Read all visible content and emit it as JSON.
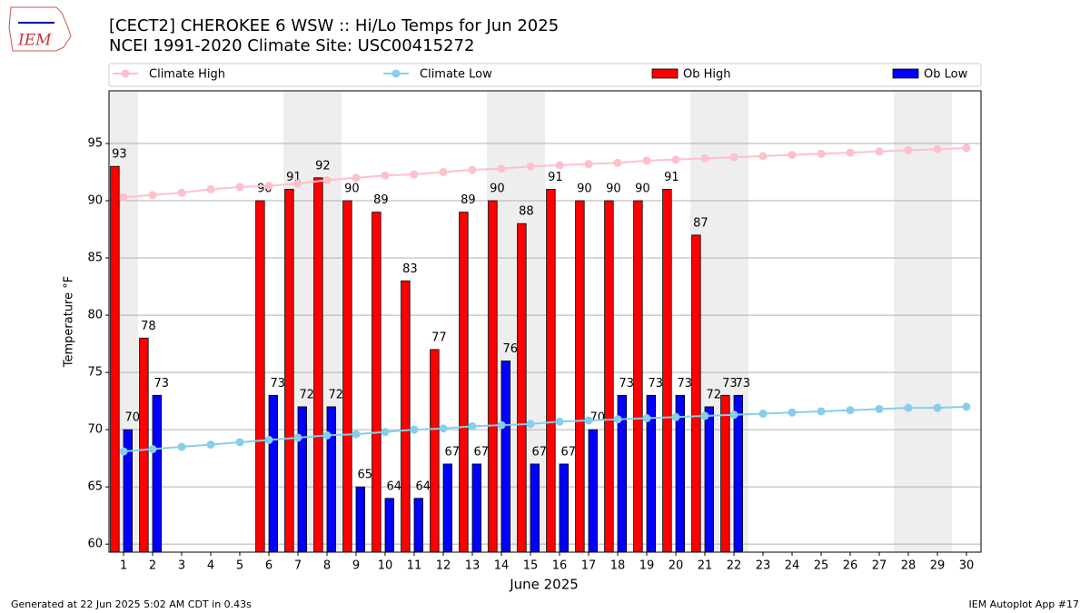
{
  "logo_text": "IEM",
  "chart_data": {
    "type": "bar",
    "title": "[CECT2] CHEROKEE 6 WSW :: Hi/Lo Temps for Jun 2025",
    "subtitle": "NCEI 1991-2020 Climate Site: USC00415272",
    "ylabel": "Temperature $^\\circ$F",
    "y_label_text": "Temperature °F",
    "xlabel": "June 2025",
    "x": [
      1,
      2,
      3,
      4,
      5,
      6,
      7,
      8,
      9,
      10,
      11,
      12,
      13,
      14,
      15,
      16,
      17,
      18,
      19,
      20,
      21,
      22,
      23,
      24,
      25,
      26,
      27,
      28,
      29,
      30
    ],
    "xlim": [
      0.5,
      30.5
    ],
    "xticks": [
      1,
      2,
      3,
      4,
      5,
      6,
      7,
      8,
      9,
      10,
      11,
      12,
      13,
      14,
      15,
      16,
      17,
      18,
      19,
      20,
      21,
      22,
      23,
      24,
      25,
      26,
      27,
      28,
      29,
      30
    ],
    "ylim": [
      59.3,
      99.6
    ],
    "yticks": [
      60,
      65,
      70,
      75,
      80,
      85,
      90,
      95
    ],
    "grid": true,
    "shaded_days": [
      1,
      7,
      8,
      14,
      15,
      21,
      22,
      28,
      29
    ],
    "series": [
      {
        "name": "Climate High",
        "kind": "line",
        "color": "#ffc0cb",
        "values": [
          90.3,
          90.5,
          90.7,
          91.0,
          91.2,
          91.3,
          91.5,
          91.8,
          92.0,
          92.2,
          92.3,
          92.5,
          92.7,
          92.8,
          93.0,
          93.1,
          93.2,
          93.3,
          93.5,
          93.6,
          93.7,
          93.8,
          93.9,
          94.0,
          94.1,
          94.2,
          94.3,
          94.4,
          94.5,
          94.6
        ]
      },
      {
        "name": "Climate Low",
        "kind": "line",
        "color": "#87ceeb",
        "values": [
          68.1,
          68.3,
          68.5,
          68.7,
          68.9,
          69.1,
          69.3,
          69.5,
          69.6,
          69.8,
          70.0,
          70.1,
          70.3,
          70.4,
          70.5,
          70.7,
          70.8,
          70.9,
          71.0,
          71.1,
          71.2,
          71.3,
          71.4,
          71.5,
          71.6,
          71.7,
          71.8,
          71.9,
          71.9,
          72.0
        ]
      },
      {
        "name": "Ob High",
        "kind": "bar",
        "color": "#ff0000",
        "values": [
          93,
          78,
          null,
          null,
          null,
          90,
          91,
          92,
          90,
          89,
          83,
          77,
          89,
          90,
          88,
          91,
          90,
          90,
          90,
          91,
          87,
          73,
          null,
          null,
          null,
          null,
          null,
          null,
          null,
          null
        ]
      },
      {
        "name": "Ob Low",
        "kind": "bar",
        "color": "#0000ff",
        "values": [
          70,
          73,
          null,
          null,
          null,
          73,
          72,
          72,
          65,
          64,
          64,
          67,
          67,
          76,
          67,
          67,
          70,
          73,
          73,
          73,
          72,
          73,
          null,
          null,
          null,
          null,
          null,
          null,
          null,
          null
        ]
      }
    ],
    "footer_left": "Generated at 22 Jun 2025 5:02 AM CDT in 0.43s",
    "footer_right": "IEM Autoplot App #17"
  }
}
